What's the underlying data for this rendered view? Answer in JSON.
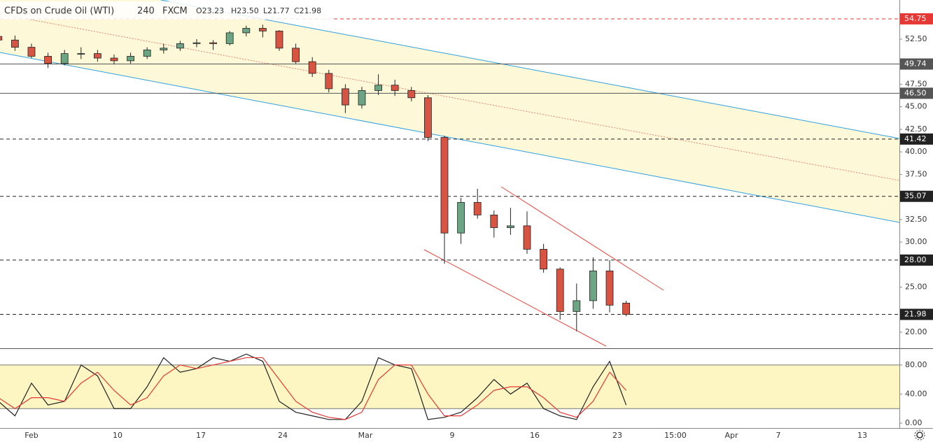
{
  "chart_data": {
    "type": "candlestick",
    "header": {
      "symbol": "CFDs on Crude Oil (WTI)",
      "interval": "240",
      "source": "FXCM",
      "open": "O23.23",
      "high": "H23.50",
      "low": "L21.77",
      "close": "C21.98"
    },
    "x_labels": [
      "Feb",
      "10",
      "17",
      "24",
      "Mar",
      "9",
      "16",
      "23",
      "15:00",
      "Apr",
      "7",
      "13"
    ],
    "ylim": [
      18.22,
      56.84
    ],
    "yticks": [
      {
        "value": 52.5,
        "label": "52.50"
      },
      {
        "value": 47.5,
        "label": "47.50"
      },
      {
        "value": 45,
        "label": "45.00"
      },
      {
        "value": 42.5,
        "label": "42.50"
      },
      {
        "value": 40,
        "label": "40.00"
      },
      {
        "value": 37.5,
        "label": "37.50"
      },
      {
        "value": 32.5,
        "label": "32.50"
      },
      {
        "value": 30,
        "label": "30.00"
      },
      {
        "value": 25,
        "label": "25.00"
      },
      {
        "value": 20,
        "label": "20.00"
      }
    ],
    "levels": [
      {
        "value": 54.75,
        "label": "54.75",
        "style": "dashed",
        "color": "#e53935"
      },
      {
        "value": 49.74,
        "label": "49.74",
        "style": "solid",
        "color": "#555555"
      },
      {
        "value": 46.5,
        "label": "46.50",
        "style": "solid",
        "color": "#555555"
      },
      {
        "value": 41.42,
        "label": "41.42",
        "style": "dashed",
        "color": "#222222"
      },
      {
        "value": 35.07,
        "label": "35.07",
        "style": "dashed",
        "color": "#222222"
      },
      {
        "value": 28,
        "label": "28.00",
        "style": "dashed",
        "color": "#222222"
      },
      {
        "value": 21.98,
        "label": "21.98",
        "style": "dashed",
        "color": "#222222"
      }
    ],
    "up_color": "#6ba583",
    "down_color": "#d75442",
    "candles": [
      [
        52.8,
        53.3,
        52.0,
        52.4
      ],
      [
        52.4,
        52.9,
        51.2,
        51.6
      ],
      [
        51.6,
        52.0,
        50.4,
        50.6
      ],
      [
        50.6,
        51.0,
        49.3,
        49.8
      ],
      [
        49.8,
        51.3,
        49.6,
        50.9
      ],
      [
        50.9,
        51.6,
        50.3,
        50.9
      ],
      [
        50.9,
        51.3,
        50.0,
        50.4
      ],
      [
        50.4,
        50.8,
        49.7,
        50.1
      ],
      [
        50.1,
        51.0,
        49.8,
        50.6
      ],
      [
        50.6,
        51.6,
        50.3,
        51.3
      ],
      [
        51.3,
        52.0,
        50.9,
        51.5
      ],
      [
        51.5,
        52.3,
        51.2,
        52.0
      ],
      [
        52.0,
        52.5,
        51.6,
        52.1
      ],
      [
        52.1,
        52.4,
        51.3,
        52.0
      ],
      [
        52.0,
        53.4,
        51.8,
        53.2
      ],
      [
        53.2,
        54.0,
        52.8,
        53.7
      ],
      [
        53.7,
        54.1,
        52.7,
        53.4
      ],
      [
        53.4,
        53.5,
        51.2,
        51.5
      ],
      [
        51.5,
        52.0,
        49.8,
        50.0
      ],
      [
        50.0,
        50.5,
        48.3,
        48.7
      ],
      [
        48.7,
        49.1,
        46.6,
        47.0
      ],
      [
        47.0,
        47.5,
        44.3,
        45.2
      ],
      [
        45.2,
        47.2,
        44.8,
        46.8
      ],
      [
        46.8,
        48.6,
        46.3,
        47.4
      ],
      [
        47.4,
        48.0,
        46.2,
        46.8
      ],
      [
        46.8,
        47.2,
        45.6,
        46.0
      ],
      [
        46.0,
        46.3,
        41.2,
        41.6
      ],
      [
        41.6,
        41.8,
        27.6,
        31.0
      ],
      [
        31.0,
        34.9,
        29.8,
        34.4
      ],
      [
        34.4,
        35.9,
        32.6,
        33.0
      ],
      [
        33.0,
        33.5,
        30.5,
        31.6
      ],
      [
        31.6,
        33.8,
        30.8,
        31.8
      ],
      [
        31.8,
        33.4,
        28.7,
        29.2
      ],
      [
        29.2,
        29.8,
        26.6,
        27.0
      ],
      [
        27.0,
        27.2,
        21.4,
        22.3
      ],
      [
        22.3,
        25.4,
        20.1,
        23.5
      ],
      [
        23.5,
        28.3,
        22.6,
        26.8
      ],
      [
        26.8,
        28.0,
        22.2,
        23.0
      ],
      [
        23.23,
        23.5,
        21.77,
        21.98
      ]
    ],
    "oscillator": {
      "ylim": [
        -6.7,
        101
      ],
      "band": [
        20,
        80
      ],
      "band_color": "#fdf6c3",
      "yticks": [
        {
          "value": 80,
          "label": "80.00"
        },
        {
          "value": 40,
          "label": "40.00"
        },
        {
          "value": 0,
          "label": "0.00"
        }
      ],
      "series": [
        {
          "color": "#222222",
          "values": [
            30,
            10,
            55,
            25,
            30,
            80,
            65,
            20,
            20,
            50,
            90,
            70,
            75,
            90,
            85,
            95,
            85,
            30,
            15,
            10,
            5,
            5,
            30,
            90,
            80,
            75,
            5,
            8,
            15,
            35,
            60,
            40,
            55,
            20,
            10,
            5,
            50,
            85,
            25
          ]
        },
        {
          "color": "#e53935",
          "values": [
            35,
            20,
            35,
            35,
            30,
            55,
            70,
            45,
            25,
            35,
            65,
            80,
            75,
            80,
            85,
            90,
            90,
            60,
            30,
            15,
            8,
            5,
            15,
            60,
            80,
            80,
            40,
            10,
            10,
            25,
            45,
            50,
            50,
            35,
            15,
            8,
            30,
            70,
            45
          ]
        }
      ]
    }
  }
}
